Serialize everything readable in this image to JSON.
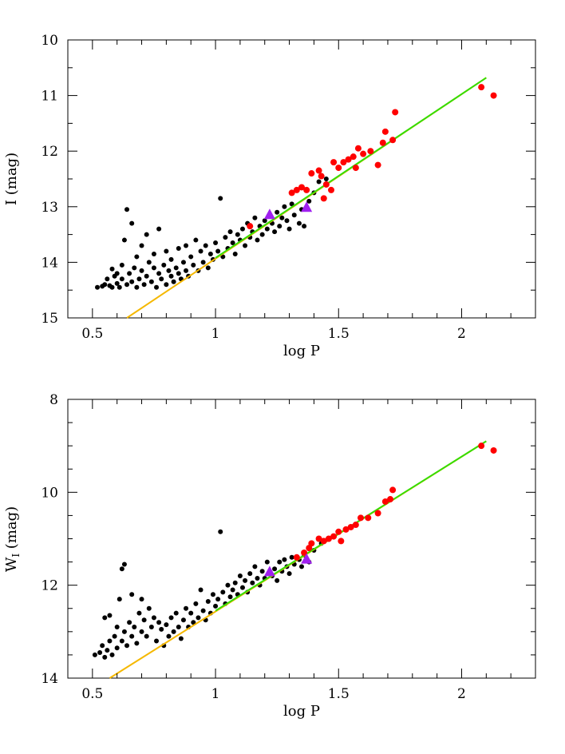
{
  "chart_data": [
    {
      "type": "scatter",
      "xlabel": "log P",
      "ylabel": "I (mag)",
      "xlim": [
        0.4,
        2.3
      ],
      "ylim": [
        15,
        10
      ],
      "y_inverted": true,
      "xticks": [
        "0.5",
        "1",
        "1.5",
        "2"
      ],
      "yticks": [
        "10",
        "11",
        "12",
        "13",
        "14",
        "15"
      ],
      "grid": false,
      "lines": [
        {
          "color": "#f5b800",
          "x": [
            0.64,
            2.1
          ],
          "y": [
            15.0,
            10.68
          ]
        },
        {
          "color": "#33dd00",
          "x": [
            1.0,
            2.1
          ],
          "y": [
            13.92,
            10.68
          ]
        }
      ],
      "red_points": [
        [
          1.14,
          13.35
        ],
        [
          1.31,
          12.75
        ],
        [
          1.33,
          12.7
        ],
        [
          1.35,
          12.65
        ],
        [
          1.37,
          12.7
        ],
        [
          1.39,
          12.4
        ],
        [
          1.42,
          12.35
        ],
        [
          1.43,
          12.45
        ],
        [
          1.44,
          12.85
        ],
        [
          1.45,
          12.6
        ],
        [
          1.47,
          12.7
        ],
        [
          1.48,
          12.2
        ],
        [
          1.5,
          12.3
        ],
        [
          1.52,
          12.2
        ],
        [
          1.54,
          12.15
        ],
        [
          1.56,
          12.1
        ],
        [
          1.57,
          12.3
        ],
        [
          1.58,
          11.95
        ],
        [
          1.6,
          12.05
        ],
        [
          1.63,
          12.0
        ],
        [
          1.66,
          12.25
        ],
        [
          1.68,
          11.85
        ],
        [
          1.69,
          11.65
        ],
        [
          1.72,
          11.8
        ],
        [
          1.73,
          11.3
        ],
        [
          2.08,
          10.85
        ],
        [
          2.13,
          11.0
        ]
      ],
      "triangles": [
        [
          1.22,
          13.15
        ],
        [
          1.37,
          13.02
        ]
      ],
      "black_points": [
        [
          0.52,
          14.45
        ],
        [
          0.54,
          14.43
        ],
        [
          0.55,
          14.4
        ],
        [
          0.56,
          14.3
        ],
        [
          0.57,
          14.42
        ],
        [
          0.58,
          14.45
        ],
        [
          0.58,
          14.12
        ],
        [
          0.59,
          14.25
        ],
        [
          0.6,
          14.38
        ],
        [
          0.6,
          14.2
        ],
        [
          0.61,
          14.45
        ],
        [
          0.62,
          14.3
        ],
        [
          0.62,
          14.05
        ],
        [
          0.63,
          13.6
        ],
        [
          0.64,
          14.4
        ],
        [
          0.64,
          13.05
        ],
        [
          0.65,
          14.2
        ],
        [
          0.66,
          14.35
        ],
        [
          0.66,
          13.3
        ],
        [
          0.67,
          14.1
        ],
        [
          0.68,
          14.45
        ],
        [
          0.68,
          13.9
        ],
        [
          0.69,
          14.3
        ],
        [
          0.7,
          14.15
        ],
        [
          0.7,
          13.7
        ],
        [
          0.71,
          14.4
        ],
        [
          0.72,
          14.25
        ],
        [
          0.72,
          13.5
        ],
        [
          0.73,
          14.0
        ],
        [
          0.74,
          14.35
        ],
        [
          0.75,
          14.1
        ],
        [
          0.75,
          13.85
        ],
        [
          0.76,
          14.45
        ],
        [
          0.77,
          14.2
        ],
        [
          0.77,
          13.4
        ],
        [
          0.78,
          14.3
        ],
        [
          0.79,
          14.05
        ],
        [
          0.8,
          14.4
        ],
        [
          0.8,
          13.8
        ],
        [
          0.81,
          14.15
        ],
        [
          0.82,
          14.25
        ],
        [
          0.82,
          13.95
        ],
        [
          0.83,
          14.35
        ],
        [
          0.84,
          14.1
        ],
        [
          0.85,
          14.2
        ],
        [
          0.85,
          13.75
        ],
        [
          0.86,
          14.3
        ],
        [
          0.87,
          14.0
        ],
        [
          0.88,
          14.15
        ],
        [
          0.88,
          13.7
        ],
        [
          0.89,
          14.25
        ],
        [
          0.9,
          13.9
        ],
        [
          0.91,
          14.05
        ],
        [
          0.92,
          13.6
        ],
        [
          0.93,
          14.15
        ],
        [
          0.94,
          13.8
        ],
        [
          0.95,
          14.0
        ],
        [
          0.96,
          13.7
        ],
        [
          0.97,
          14.1
        ],
        [
          0.98,
          13.85
        ],
        [
          0.99,
          13.95
        ],
        [
          1.0,
          13.65
        ],
        [
          1.01,
          13.8
        ],
        [
          1.02,
          12.85
        ],
        [
          1.03,
          13.9
        ],
        [
          1.04,
          13.55
        ],
        [
          1.05,
          13.75
        ],
        [
          1.06,
          13.45
        ],
        [
          1.07,
          13.65
        ],
        [
          1.08,
          13.85
        ],
        [
          1.09,
          13.5
        ],
        [
          1.1,
          13.6
        ],
        [
          1.11,
          13.4
        ],
        [
          1.12,
          13.7
        ],
        [
          1.13,
          13.3
        ],
        [
          1.14,
          13.55
        ],
        [
          1.15,
          13.45
        ],
        [
          1.16,
          13.2
        ],
        [
          1.17,
          13.6
        ],
        [
          1.18,
          13.35
        ],
        [
          1.19,
          13.5
        ],
        [
          1.2,
          13.25
        ],
        [
          1.21,
          13.4
        ],
        [
          1.23,
          13.3
        ],
        [
          1.24,
          13.45
        ],
        [
          1.25,
          13.1
        ],
        [
          1.26,
          13.35
        ],
        [
          1.27,
          13.2
        ],
        [
          1.28,
          13.0
        ],
        [
          1.29,
          13.25
        ],
        [
          1.3,
          13.4
        ],
        [
          1.31,
          12.95
        ],
        [
          1.32,
          13.15
        ],
        [
          1.34,
          13.3
        ],
        [
          1.35,
          13.05
        ],
        [
          1.36,
          13.35
        ],
        [
          1.38,
          12.9
        ],
        [
          1.4,
          12.75
        ],
        [
          1.42,
          12.55
        ],
        [
          1.45,
          12.5
        ]
      ]
    },
    {
      "type": "scatter",
      "xlabel": "log P",
      "ylabel": "W_I (mag)",
      "xlim": [
        0.4,
        2.3
      ],
      "ylim": [
        14,
        8
      ],
      "y_inverted": true,
      "xticks": [
        "0.5",
        "1",
        "1.5",
        "2"
      ],
      "yticks": [
        "8",
        "10",
        "12",
        "14"
      ],
      "grid": false,
      "lines": [
        {
          "color": "#f5b800",
          "x": [
            0.57,
            2.1
          ],
          "y": [
            14.0,
            8.9
          ]
        },
        {
          "color": "#33dd00",
          "x": [
            1.0,
            2.1
          ],
          "y": [
            12.55,
            8.9
          ]
        }
      ],
      "red_points": [
        [
          1.33,
          11.4
        ],
        [
          1.36,
          11.3
        ],
        [
          1.38,
          11.2
        ],
        [
          1.39,
          11.1
        ],
        [
          1.42,
          11.0
        ],
        [
          1.44,
          11.05
        ],
        [
          1.46,
          11.0
        ],
        [
          1.48,
          10.95
        ],
        [
          1.5,
          10.85
        ],
        [
          1.51,
          11.05
        ],
        [
          1.53,
          10.8
        ],
        [
          1.55,
          10.75
        ],
        [
          1.57,
          10.7
        ],
        [
          1.59,
          10.55
        ],
        [
          1.62,
          10.55
        ],
        [
          1.66,
          10.45
        ],
        [
          1.69,
          10.2
        ],
        [
          1.71,
          10.15
        ],
        [
          1.72,
          9.95
        ],
        [
          2.08,
          9.0
        ],
        [
          2.13,
          9.1
        ]
      ],
      "triangles": [
        [
          1.22,
          11.72
        ],
        [
          1.37,
          11.45
        ]
      ],
      "black_points": [
        [
          0.51,
          13.5
        ],
        [
          0.53,
          13.45
        ],
        [
          0.54,
          13.3
        ],
        [
          0.55,
          13.55
        ],
        [
          0.55,
          12.7
        ],
        [
          0.56,
          13.4
        ],
        [
          0.57,
          13.2
        ],
        [
          0.57,
          12.65
        ],
        [
          0.58,
          13.5
        ],
        [
          0.59,
          13.1
        ],
        [
          0.6,
          13.35
        ],
        [
          0.6,
          12.9
        ],
        [
          0.61,
          12.3
        ],
        [
          0.62,
          13.2
        ],
        [
          0.62,
          11.65
        ],
        [
          0.63,
          13.0
        ],
        [
          0.63,
          11.55
        ],
        [
          0.64,
          13.3
        ],
        [
          0.65,
          12.8
        ],
        [
          0.66,
          13.1
        ],
        [
          0.66,
          12.2
        ],
        [
          0.67,
          12.9
        ],
        [
          0.68,
          13.25
        ],
        [
          0.69,
          12.6
        ],
        [
          0.7,
          13.0
        ],
        [
          0.7,
          12.3
        ],
        [
          0.71,
          12.75
        ],
        [
          0.72,
          13.1
        ],
        [
          0.73,
          12.5
        ],
        [
          0.74,
          12.9
        ],
        [
          0.75,
          12.7
        ],
        [
          0.76,
          13.2
        ],
        [
          0.77,
          12.8
        ],
        [
          0.78,
          12.95
        ],
        [
          0.79,
          13.3
        ],
        [
          0.8,
          12.85
        ],
        [
          0.81,
          13.1
        ],
        [
          0.82,
          12.7
        ],
        [
          0.83,
          13.0
        ],
        [
          0.84,
          12.6
        ],
        [
          0.85,
          12.9
        ],
        [
          0.86,
          13.15
        ],
        [
          0.87,
          12.75
        ],
        [
          0.88,
          12.5
        ],
        [
          0.89,
          12.9
        ],
        [
          0.9,
          12.6
        ],
        [
          0.91,
          12.8
        ],
        [
          0.92,
          12.4
        ],
        [
          0.93,
          12.7
        ],
        [
          0.94,
          12.1
        ],
        [
          0.95,
          12.55
        ],
        [
          0.96,
          12.75
        ],
        [
          0.97,
          12.35
        ],
        [
          0.98,
          12.6
        ],
        [
          0.99,
          12.2
        ],
        [
          1.0,
          12.45
        ],
        [
          1.01,
          12.3
        ],
        [
          1.02,
          10.85
        ],
        [
          1.03,
          12.15
        ],
        [
          1.04,
          12.4
        ],
        [
          1.05,
          12.0
        ],
        [
          1.06,
          12.25
        ],
        [
          1.07,
          12.1
        ],
        [
          1.08,
          11.95
        ],
        [
          1.09,
          12.2
        ],
        [
          1.1,
          11.8
        ],
        [
          1.11,
          12.05
        ],
        [
          1.12,
          11.9
        ],
        [
          1.13,
          12.15
        ],
        [
          1.14,
          11.75
        ],
        [
          1.15,
          11.95
        ],
        [
          1.16,
          11.6
        ],
        [
          1.17,
          11.85
        ],
        [
          1.18,
          12.0
        ],
        [
          1.19,
          11.7
        ],
        [
          1.2,
          11.85
        ],
        [
          1.21,
          11.5
        ],
        [
          1.23,
          11.8
        ],
        [
          1.24,
          11.65
        ],
        [
          1.25,
          11.9
        ],
        [
          1.26,
          11.5
        ],
        [
          1.27,
          11.7
        ],
        [
          1.28,
          11.45
        ],
        [
          1.29,
          11.6
        ],
        [
          1.3,
          11.75
        ],
        [
          1.31,
          11.4
        ],
        [
          1.32,
          11.55
        ],
        [
          1.34,
          11.45
        ],
        [
          1.35,
          11.6
        ],
        [
          1.36,
          11.35
        ],
        [
          1.38,
          11.5
        ],
        [
          1.4,
          11.25
        ],
        [
          1.43,
          11.1
        ]
      ]
    }
  ]
}
